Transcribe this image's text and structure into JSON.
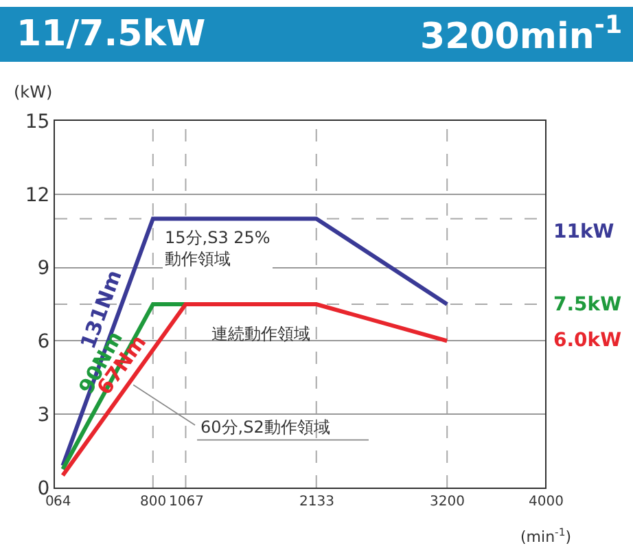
{
  "chart_data": {
    "type": "line",
    "title": "11/7.5kW",
    "subtitle": "3200min$^{-1}$",
    "ylabel": "(kW)",
    "xlabel": "(min$^{-1}$)",
    "series": [
      {
        "name": "131Nm",
        "color": "#3a3a96",
        "x": [
          64,
          800,
          2133,
          3200
        ],
        "values": [
          0.9,
          11,
          11,
          7.5
        ]
      },
      {
        "name": "90Nm",
        "color": "#1e9a3c",
        "x": [
          64,
          800,
          1067
        ],
        "values": [
          0.75,
          7.5,
          7.5
        ]
      },
      {
        "name": "67Nm",
        "color": "#e8262d",
        "x": [
          64,
          1067,
          2133,
          3200
        ],
        "values": [
          0.5,
          7.5,
          7.5,
          6.0
        ]
      }
    ],
    "xlim": [
      0,
      4000
    ],
    "ylim": [
      0,
      15
    ],
    "xticks": [
      0,
      64,
      800,
      1067,
      2133,
      3200,
      4000
    ],
    "yticks": [
      0,
      3,
      6,
      9,
      12,
      15
    ],
    "grid": "y",
    "legend": false,
    "marker": "none",
    "line_style": "solid",
    "ref_lines": [
      {
        "axis": "x",
        "value": 800,
        "line_style": "dashed",
        "color": "#aaaaaa"
      },
      {
        "axis": "x",
        "value": 1067,
        "line_style": "dashed",
        "color": "#aaaaaa"
      },
      {
        "axis": "x",
        "value": 2133,
        "line_style": "dashed",
        "color": "#aaaaaa"
      },
      {
        "axis": "x",
        "value": 3200,
        "line_style": "dashed",
        "color": "#aaaaaa"
      },
      {
        "axis": "y",
        "value": 11,
        "line_style": "dashed",
        "color": "#aaaaaa"
      },
      {
        "axis": "y",
        "value": 7.5,
        "line_style": "dashed",
        "color": "#aaaaaa"
      }
    ],
    "annotations": [
      "15分,S3 25%\n動作領域",
      "連続動作領域",
      {
        "text": "60分,S2動作領域",
        "x": 640,
        "y": 4.2
      },
      "11kW",
      "7.5kW",
      "6.0kW"
    ]
  }
}
